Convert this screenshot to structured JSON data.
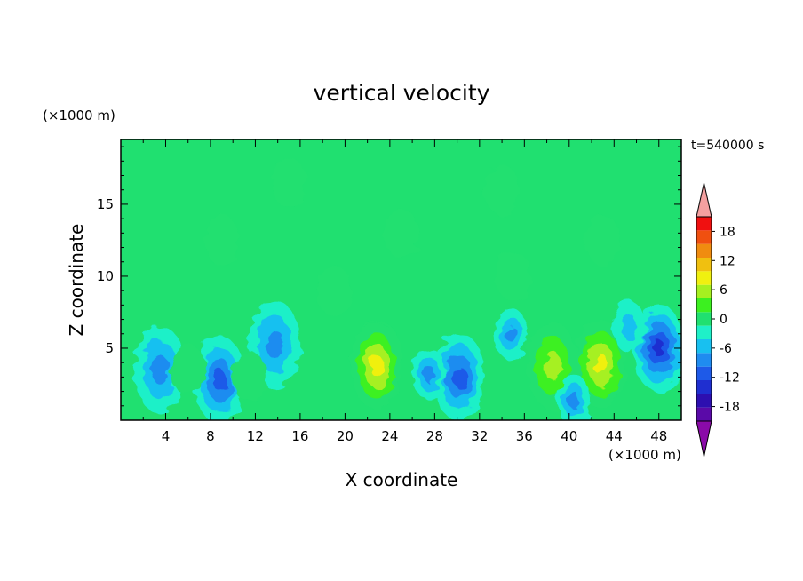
{
  "chart_data": {
    "type": "heatmap",
    "title": "vertical velocity",
    "xlabel": "X coordinate",
    "ylabel": "Z coordinate",
    "x_unit": "(×1000 m)",
    "y_unit": "(×1000 m)",
    "time_label": "t=540000 s",
    "xlim": [
      0,
      50
    ],
    "ylim": [
      0,
      19.5
    ],
    "x_ticks": [
      4,
      8,
      12,
      16,
      20,
      24,
      28,
      32,
      36,
      40,
      44,
      48
    ],
    "y_ticks": [
      5,
      10,
      15
    ],
    "colorbar": {
      "ticks": [
        18,
        12,
        6,
        0,
        -6,
        -12,
        -18
      ],
      "levels": [
        -21,
        -18,
        -15,
        -12,
        -9,
        -6,
        -3,
        0,
        3,
        6,
        9,
        12,
        15,
        18,
        21
      ],
      "colors": [
        "#5a0aa8",
        "#2d0fb0",
        "#1f2fd0",
        "#1e5ae8",
        "#1f8cf0",
        "#18c0f0",
        "#1ff0c8",
        "#20e070",
        "#3cf020",
        "#a6f020",
        "#f0f010",
        "#f0c010",
        "#f08c10",
        "#f05010",
        "#f01010"
      ],
      "over_color": "#f4a0a0",
      "under_color": "#8a0aa8"
    },
    "background_value": 0,
    "features": [
      {
        "x": 22.8,
        "z": 4.0,
        "w": -1,
        "value": 13
      },
      {
        "x": 22.8,
        "z": 3.8,
        "w": -1,
        "value": 11
      },
      {
        "x": 38.5,
        "z": 3.8,
        "w": -1,
        "value": 8
      },
      {
        "x": 42.8,
        "z": 3.9,
        "w": -1,
        "value": 10
      },
      {
        "x": 13.7,
        "z": 5.3,
        "w": -1,
        "value": -9
      },
      {
        "x": 48.0,
        "z": 5.0,
        "w": -1,
        "value": -14
      },
      {
        "x": 8.8,
        "z": 2.8,
        "w": -1,
        "value": -11
      },
      {
        "x": 3.5,
        "z": 3.5,
        "w": -1,
        "value": -8
      },
      {
        "x": 30.2,
        "z": 3.0,
        "w": -1,
        "value": -10
      },
      {
        "x": 27.5,
        "z": 3.2,
        "w": -1,
        "value": -7
      },
      {
        "x": 34.8,
        "z": 6.0,
        "w": -1,
        "value": -7
      },
      {
        "x": 40.4,
        "z": 1.4,
        "w": -1,
        "value": -7
      },
      {
        "x": 6.0,
        "z": 3.5,
        "w": -1,
        "value": 3
      },
      {
        "x": 11.5,
        "z": 3.0,
        "w": -1,
        "value": 2
      },
      {
        "x": 45.3,
        "z": 6.5,
        "w": -1,
        "value": -4
      },
      {
        "x": 19.0,
        "z": 9.0,
        "w": -1,
        "value": 2
      },
      {
        "x": 35.0,
        "z": 10.0,
        "w": -1,
        "value": 2
      },
      {
        "x": 9.0,
        "z": 12.5,
        "w": -1,
        "value": 1
      },
      {
        "x": 25.0,
        "z": 13.0,
        "w": -1,
        "value": 2
      },
      {
        "x": 43.0,
        "z": 12.5,
        "w": -1,
        "value": 2
      },
      {
        "x": 15.0,
        "z": 16.5,
        "w": -1,
        "value": 1
      },
      {
        "x": 34.0,
        "z": 16.0,
        "w": -1,
        "value": 1
      }
    ]
  }
}
